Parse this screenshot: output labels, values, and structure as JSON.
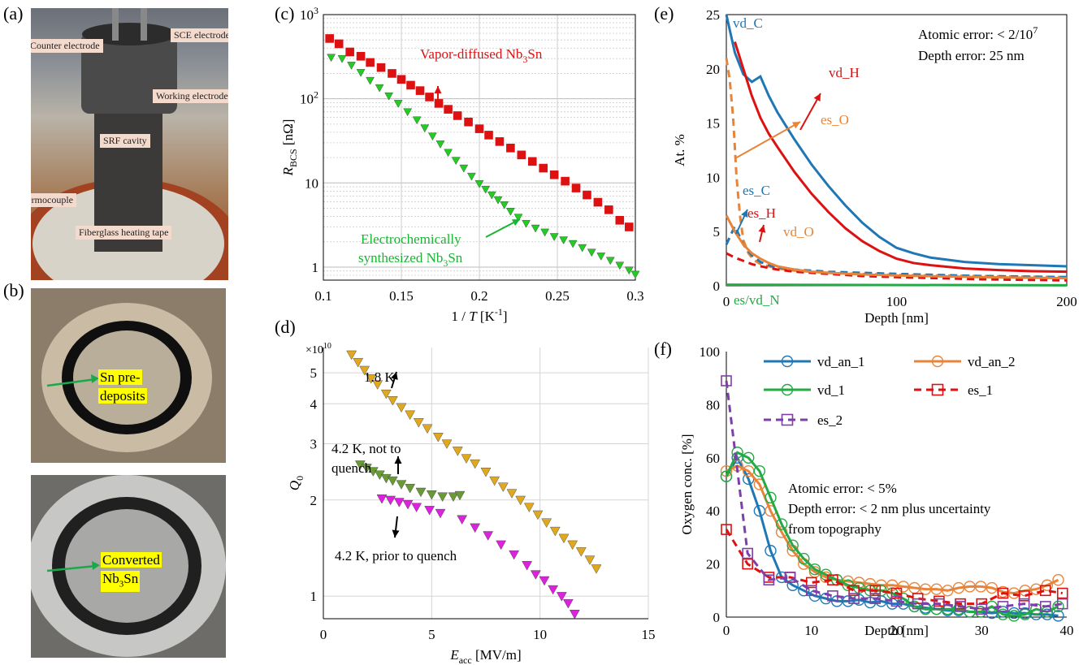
{
  "panels": {
    "a": "(a)",
    "b": "(b)",
    "c": "(c)",
    "d": "(d)",
    "e": "(e)",
    "f": "(f)"
  },
  "photo_a_labels": {
    "counter": "Counter electrode",
    "sce": "SCE electrode",
    "working": "Working electrode",
    "srf": "SRF cavity",
    "thermo": "Thermocouple",
    "fiber": "Fiberglass heating tape"
  },
  "photo_b_labels": {
    "sn_line1": "Sn pre-",
    "sn_line2": "deposits",
    "conv_line1": "Converted",
    "conv_line2_main": "Nb",
    "conv_line2_sub": "3",
    "conv_line2_end": "Sn"
  },
  "colors": {
    "red": "#dd1111",
    "green": "#22cc22",
    "gold": "#e0a81e",
    "olive": "#6a9a36",
    "magenta": "#dd22dd",
    "blue": "#1f77b4",
    "orange": "#e8843a",
    "dgreen": "#22aa44",
    "purple": "#7e3fa8"
  },
  "chart_data": [
    {
      "id": "c",
      "type": "scatter",
      "xlim": [
        0.1,
        0.3
      ],
      "ylim": [
        0.7,
        1000
      ],
      "yscale": "log",
      "xticks": [
        "0.1",
        "0.15",
        "0.2",
        "0.25",
        "0.3"
      ],
      "xtick_values": [
        0.1,
        0.15,
        0.2,
        0.25,
        0.3
      ],
      "yticks": [
        {
          "value": 1,
          "base": "1",
          "exp": ""
        },
        {
          "value": 10,
          "base": "10",
          "exp": ""
        },
        {
          "value": 100,
          "base": "10",
          "exp": "2"
        },
        {
          "value": 1000,
          "base": "10",
          "exp": "3"
        }
      ],
      "xlabel": {
        "pre": "1 / ",
        "var": "T",
        "post": " [K",
        "sup": "-1",
        "end": "]"
      },
      "ylabel": {
        "var": "R",
        "sub": "BCS",
        "post": " [nΩ]"
      },
      "series": [
        {
          "name": "Vapor-diffused Nb3Sn",
          "marker": "square",
          "color": "red",
          "x": [
            0.104,
            0.11,
            0.117,
            0.124,
            0.13,
            0.137,
            0.144,
            0.15,
            0.156,
            0.162,
            0.168,
            0.174,
            0.18,
            0.186,
            0.193,
            0.2,
            0.206,
            0.213,
            0.22,
            0.227,
            0.234,
            0.241,
            0.248,
            0.255,
            0.262,
            0.269,
            0.276,
            0.283,
            0.29,
            0.296
          ],
          "y": [
            520,
            450,
            360,
            320,
            270,
            235,
            200,
            170,
            145,
            125,
            105,
            88,
            75,
            63,
            53,
            44,
            37,
            31,
            26,
            21.5,
            18,
            15,
            12.5,
            10.5,
            8.7,
            7.2,
            5.9,
            4.8,
            3.6,
            3.0
          ]
        },
        {
          "name": "Electrochemically synthesized Nb3Sn",
          "marker": "triangle-down",
          "color": "green",
          "x": [
            0.105,
            0.112,
            0.118,
            0.124,
            0.13,
            0.136,
            0.142,
            0.148,
            0.154,
            0.16,
            0.165,
            0.17,
            0.175,
            0.18,
            0.185,
            0.19,
            0.195,
            0.2,
            0.204,
            0.208,
            0.212,
            0.216,
            0.22,
            0.225,
            0.23,
            0.236,
            0.242,
            0.248,
            0.254,
            0.26,
            0.266,
            0.272,
            0.278,
            0.284,
            0.29,
            0.296,
            0.3
          ],
          "y": [
            310,
            300,
            250,
            205,
            165,
            135,
            108,
            88,
            70,
            56,
            45,
            36,
            29,
            23,
            18.5,
            15,
            12,
            9.8,
            8.4,
            7.2,
            6.3,
            5.5,
            4.6,
            3.9,
            3.3,
            2.9,
            2.6,
            2.3,
            2.1,
            1.9,
            1.7,
            1.5,
            1.35,
            1.2,
            1.05,
            0.92,
            0.82
          ]
        }
      ],
      "annotations": [
        {
          "text": "Vapor-diffused Nb",
          "sub": "3",
          "end": "Sn",
          "color": "red"
        },
        {
          "text1": "Electrochemically",
          "text2": "synthesized Nb",
          "sub": "3",
          "end": "Sn",
          "color": "green"
        }
      ]
    },
    {
      "id": "d",
      "type": "scatter",
      "xlim": [
        0,
        15
      ],
      "ylim": [
        0.85,
        6
      ],
      "yscale": "log",
      "multiplier": "×10",
      "multiplier_exp": "10",
      "xticks": [
        "0",
        "5",
        "10",
        "15"
      ],
      "xtick_values": [
        0,
        5,
        10,
        15
      ],
      "yticks": [
        {
          "value": 1,
          "label": "1"
        },
        {
          "value": 2,
          "label": "2"
        },
        {
          "value": 3,
          "label": "3"
        },
        {
          "value": 4,
          "label": "4"
        },
        {
          "value": 5,
          "label": "5"
        }
      ],
      "xlabel": {
        "var": "E",
        "sub": "acc",
        "post": " [MV/m]"
      },
      "ylabel": {
        "var": "Q",
        "sub": "0"
      },
      "series": [
        {
          "name": "1.8 K",
          "marker": "triangle-down",
          "color": "gold",
          "x": [
            1.3,
            1.6,
            1.9,
            2.2,
            2.5,
            2.9,
            3.2,
            3.6,
            4.0,
            4.4,
            4.8,
            5.3,
            5.7,
            6.2,
            6.6,
            7.0,
            7.5,
            7.9,
            8.3,
            8.7,
            9.1,
            9.5,
            9.9,
            10.3,
            10.7,
            11.1,
            11.5,
            11.9,
            12.3,
            12.6
          ],
          "y": [
            5.7,
            5.4,
            5.1,
            4.8,
            4.6,
            4.3,
            4.1,
            3.9,
            3.7,
            3.5,
            3.35,
            3.15,
            3.0,
            2.85,
            2.7,
            2.6,
            2.45,
            2.3,
            2.2,
            2.1,
            2.0,
            1.9,
            1.8,
            1.7,
            1.6,
            1.52,
            1.45,
            1.38,
            1.3,
            1.22
          ]
        },
        {
          "name": "4.2 K, not to quench",
          "marker": "triangle-down",
          "color": "olive",
          "x": [
            1.7,
            2.0,
            2.3,
            2.6,
            2.9,
            3.2,
            3.6,
            4.0,
            4.5,
            5.0,
            5.5,
            6.0,
            6.3
          ],
          "y": [
            2.58,
            2.52,
            2.46,
            2.4,
            2.34,
            2.3,
            2.24,
            2.18,
            2.12,
            2.08,
            2.05,
            2.05,
            2.07
          ]
        },
        {
          "name": "4.2 K, prior to quench",
          "marker": "triangle-down",
          "color": "magenta",
          "x": [
            2.7,
            3.1,
            3.5,
            3.9,
            4.3,
            4.9,
            5.4,
            6.4,
            7.0,
            7.6,
            8.2,
            8.8,
            9.4,
            9.8,
            10.2,
            10.6,
            11.0,
            11.3,
            11.6
          ],
          "y": [
            2.02,
            2.0,
            1.97,
            1.94,
            1.9,
            1.86,
            1.82,
            1.74,
            1.64,
            1.55,
            1.45,
            1.35,
            1.25,
            1.17,
            1.12,
            1.05,
            1.0,
            0.95,
            0.88
          ]
        }
      ],
      "annotations": [
        {
          "text": "1.8 K"
        },
        {
          "text1": "4.2 K, not to",
          "text2": "quench"
        },
        {
          "text": "4.2 K, prior to quench"
        }
      ]
    },
    {
      "id": "e",
      "type": "line",
      "xlim": [
        0,
        200
      ],
      "ylim": [
        0,
        25
      ],
      "xticks": [
        "0",
        "100",
        "200"
      ],
      "xtick_values": [
        0,
        100,
        200
      ],
      "yticks": [
        "0",
        "5",
        "10",
        "15",
        "20",
        "25"
      ],
      "ytick_values": [
        0,
        5,
        10,
        15,
        20,
        25
      ],
      "xlabel": "Depth [nm]",
      "ylabel": "At. %",
      "note1": "Atomic error: < 2/10",
      "note1_exp": "7",
      "note2": "Depth error: 25 nm",
      "series": [
        {
          "name": "vd_C",
          "color": "blue",
          "dash": false,
          "x": [
            0,
            5,
            10,
            15,
            20,
            25,
            30,
            40,
            50,
            60,
            70,
            80,
            90,
            100,
            110,
            120,
            140,
            160,
            180,
            200
          ],
          "y": [
            25,
            21.5,
            19.5,
            18.8,
            19.3,
            17.5,
            16,
            13.5,
            11.2,
            9.2,
            7.4,
            5.8,
            4.5,
            3.5,
            3.0,
            2.6,
            2.2,
            2.0,
            1.9,
            1.8
          ]
        },
        {
          "name": "vd_H",
          "color": "red",
          "dash": false,
          "x": [
            5,
            10,
            15,
            20,
            25,
            30,
            40,
            50,
            60,
            70,
            80,
            90,
            100,
            110,
            120,
            140,
            160,
            180,
            200
          ],
          "y": [
            22.5,
            20,
            17.5,
            15.5,
            14,
            12.8,
            10.5,
            8.5,
            6.8,
            5.3,
            4.1,
            3.2,
            2.5,
            2.1,
            1.9,
            1.6,
            1.45,
            1.35,
            1.3
          ]
        },
        {
          "name": "es_O",
          "color": "orange",
          "dash": true,
          "x": [
            0,
            2,
            4,
            6,
            8,
            10,
            13,
            16,
            20,
            25,
            30,
            40,
            50,
            60,
            80,
            100,
            150,
            200
          ],
          "y": [
            21,
            19,
            15.5,
            10,
            6.5,
            4.2,
            3,
            2.4,
            2,
            1.8,
            1.6,
            1.4,
            1.3,
            1.2,
            1.1,
            1.0,
            0.9,
            0.8
          ]
        },
        {
          "name": "es_C",
          "color": "blue",
          "dash": true,
          "x": [
            0,
            5,
            10,
            15,
            20,
            25,
            30,
            40,
            50,
            60,
            80,
            100,
            150,
            200
          ],
          "y": [
            3.8,
            5.5,
            3.8,
            2.8,
            2.2,
            1.9,
            1.7,
            1.5,
            1.4,
            1.3,
            1.2,
            1.1,
            0.9,
            0.8
          ]
        },
        {
          "name": "es_H",
          "color": "red",
          "dash": true,
          "x": [
            0,
            5,
            10,
            15,
            20,
            30,
            40,
            60,
            80,
            100,
            150,
            200
          ],
          "y": [
            3,
            2.6,
            2.3,
            2.0,
            1.8,
            1.5,
            1.3,
            1.1,
            0.9,
            0.8,
            0.6,
            0.5
          ]
        },
        {
          "name": "vd_O",
          "color": "orange",
          "dash": false,
          "x": [
            0,
            5,
            10,
            15,
            20,
            25,
            30,
            40,
            50,
            60,
            80,
            100,
            150,
            200
          ],
          "y": [
            6.5,
            5,
            3.8,
            3,
            2.5,
            2.1,
            1.8,
            1.5,
            1.3,
            1.2,
            1.05,
            0.95,
            0.8,
            0.7
          ]
        },
        {
          "name": "es/vd_N",
          "color": "dgreen",
          "dash": false,
          "x": [
            0,
            200
          ],
          "y": [
            0.1,
            0.05
          ]
        }
      ]
    },
    {
      "id": "f",
      "type": "line",
      "xlim": [
        0,
        40
      ],
      "ylim": [
        0,
        100
      ],
      "xticks": [
        "0",
        "10",
        "20",
        "30",
        "40"
      ],
      "xtick_values": [
        0,
        10,
        20,
        30,
        40
      ],
      "yticks": [
        "0",
        "20",
        "40",
        "60",
        "80",
        "100"
      ],
      "ytick_values": [
        0,
        20,
        40,
        60,
        80,
        100
      ],
      "xlabel": "Depth [nm]",
      "ylabel": "Oxygen conc. [%]",
      "note1": "Atomic error: < 5%",
      "note2": "Depth error: < 2 nm plus uncertainty",
      "note3": "from topography",
      "series": [
        {
          "name": "vd_an_1",
          "color": "blue",
          "marker": "circle",
          "dash": false,
          "x": [
            0,
            1.3,
            2.6,
            3.9,
            5.2,
            6.5,
            7.8,
            9.1,
            10.4,
            11.7,
            13,
            14.3,
            15.6,
            16.9,
            18.2,
            19.5,
            20.8,
            22.1,
            23.4,
            24.7,
            26,
            27.3,
            28.6,
            29.9,
            31.2,
            32.5,
            33.8,
            35.1,
            36.4,
            37.7,
            39
          ],
          "y": [
            53,
            60,
            52,
            40,
            25,
            15,
            12,
            10,
            8,
            7,
            6,
            6,
            6.5,
            5.5,
            6,
            5,
            5,
            4,
            3.5,
            3,
            2.5,
            2.5,
            2,
            2,
            1.5,
            2,
            1.5,
            1.5,
            1,
            1,
            0.5
          ]
        },
        {
          "name": "vd_an_2",
          "color": "orange",
          "marker": "circle",
          "dash": false,
          "x": [
            0,
            1.3,
            2.6,
            3.9,
            5.2,
            6.5,
            7.8,
            9.1,
            10.4,
            11.7,
            13,
            14.3,
            15.6,
            16.9,
            18.2,
            19.5,
            20.8,
            22.1,
            23.4,
            24.7,
            26,
            27.3,
            28.6,
            29.9,
            31.2,
            32.5,
            33.8,
            35.1,
            36.4,
            37.7,
            39
          ],
          "y": [
            55,
            57,
            55,
            50,
            40,
            32,
            25,
            20,
            17,
            15,
            14,
            13.5,
            13,
            12.5,
            12,
            12,
            11.5,
            11,
            10.5,
            10.5,
            10,
            11,
            11.5,
            11.5,
            11,
            9.5,
            9,
            10,
            10.5,
            12,
            14
          ]
        },
        {
          "name": "vd_1",
          "color": "dgreen",
          "marker": "circle",
          "dash": false,
          "x": [
            0,
            1.3,
            2.6,
            3.9,
            5.2,
            6.5,
            7.8,
            9.1,
            10.4,
            11.7,
            13,
            14.3,
            15.6,
            16.9,
            18.2,
            19.5,
            20.8,
            22.1,
            23.4,
            24.7,
            26,
            27.3,
            28.6,
            29.9,
            31.2,
            32.5,
            33.8,
            35.1,
            36.4,
            37.7,
            39
          ],
          "y": [
            53,
            62,
            60,
            55,
            45,
            35,
            27,
            22,
            18,
            16,
            14,
            12,
            11,
            10,
            10,
            9,
            7,
            4,
            3,
            3,
            3,
            3,
            2,
            2,
            4,
            1,
            0.5,
            1,
            3,
            2,
            4
          ]
        },
        {
          "name": "es_1",
          "color": "red",
          "marker": "square",
          "dash": true,
          "x": [
            0,
            2.5,
            5,
            7.5,
            10,
            12.5,
            15,
            17.5,
            20,
            22.5,
            25,
            27.5,
            30,
            32.5,
            35,
            37.5,
            39.5
          ],
          "y": [
            33,
            20,
            15,
            15,
            13,
            14,
            10,
            10,
            9,
            7,
            6,
            5,
            5,
            9,
            8,
            10,
            9
          ]
        },
        {
          "name": "es_2",
          "color": "purple",
          "marker": "square",
          "dash": true,
          "x": [
            0,
            2.5,
            5,
            7.5,
            10,
            12.5,
            15,
            17.5,
            20,
            22.5,
            25,
            27.5,
            30,
            32.5,
            35,
            37.5,
            39.5
          ],
          "y": [
            89,
            24,
            14,
            15,
            10,
            8,
            7,
            7,
            6,
            5,
            5,
            4,
            3,
            4,
            5,
            4,
            5
          ]
        }
      ]
    }
  ]
}
